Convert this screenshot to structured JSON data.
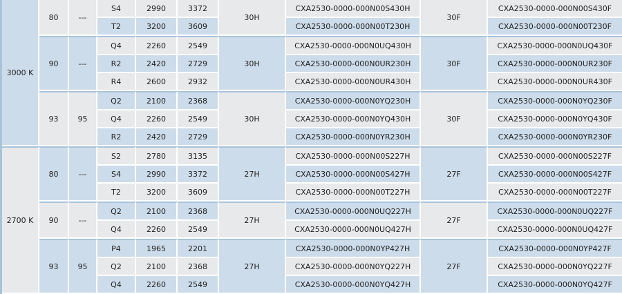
{
  "colors": {
    "grey": "#e8e9ea",
    "blue": "#cddcea",
    "divider": "#a8c3dc"
  },
  "table": {
    "cct_groups": [
      {
        "cct": "3000 K",
        "cri_groups": [
          {
            "cri_min": "80",
            "cri_typ": "---",
            "code_h": "30H",
            "code_f": "30F",
            "bins": [
              {
                "bin": "S4",
                "flux_min": "2990",
                "flux_typ": "3372",
                "part_h": "CXA2530-0000-000N00S430H",
                "part_f": "CXA2530-0000-000N00S430F"
              },
              {
                "bin": "T2",
                "flux_min": "3200",
                "flux_typ": "3609",
                "part_h": "CXA2530-0000-000N00T230H",
                "part_f": "CXA2530-0000-000N00T230F"
              }
            ]
          },
          {
            "cri_min": "90",
            "cri_typ": "---",
            "code_h": "30H",
            "code_f": "30F",
            "bins": [
              {
                "bin": "Q4",
                "flux_min": "2260",
                "flux_typ": "2549",
                "part_h": "CXA2530-0000-000N0UQ430H",
                "part_f": "CXA2530-0000-000N0UQ430F"
              },
              {
                "bin": "R2",
                "flux_min": "2420",
                "flux_typ": "2729",
                "part_h": "CXA2530-0000-000N0UR230H",
                "part_f": "CXA2530-0000-000N0UR230F"
              },
              {
                "bin": "R4",
                "flux_min": "2600",
                "flux_typ": "2932",
                "part_h": "CXA2530-0000-000N0UR430H",
                "part_f": "CXA2530-0000-000N0UR430F"
              }
            ]
          },
          {
            "cri_min": "93",
            "cri_typ": "95",
            "code_h": "30H",
            "code_f": "30F",
            "bins": [
              {
                "bin": "Q2",
                "flux_min": "2100",
                "flux_typ": "2368",
                "part_h": "CXA2530-0000-000N0YQ230H",
                "part_f": "CXA2530-0000-000N0YQ230F"
              },
              {
                "bin": "Q4",
                "flux_min": "2260",
                "flux_typ": "2549",
                "part_h": "CXA2530-0000-000N0YQ430H",
                "part_f": "CXA2530-0000-000N0YQ430F"
              },
              {
                "bin": "R2",
                "flux_min": "2420",
                "flux_typ": "2729",
                "part_h": "CXA2530-0000-000N0YR230H",
                "part_f": "CXA2530-0000-000N0YR230F"
              }
            ]
          }
        ]
      },
      {
        "cct": "2700 K",
        "cri_groups": [
          {
            "cri_min": "80",
            "cri_typ": "---",
            "code_h": "27H",
            "code_f": "27F",
            "bins": [
              {
                "bin": "S2",
                "flux_min": "2780",
                "flux_typ": "3135",
                "part_h": "CXA2530-0000-000N00S227H",
                "part_f": "CXA2530-0000-000N00S227F"
              },
              {
                "bin": "S4",
                "flux_min": "2990",
                "flux_typ": "3372",
                "part_h": "CXA2530-0000-000N00S427H",
                "part_f": "CXA2530-0000-000N00S427F"
              },
              {
                "bin": "T2",
                "flux_min": "3200",
                "flux_typ": "3609",
                "part_h": "CXA2530-0000-000N00T227H",
                "part_f": "CXA2530-0000-000N00T227F"
              }
            ]
          },
          {
            "cri_min": "90",
            "cri_typ": "---",
            "code_h": "27H",
            "code_f": "27F",
            "bins": [
              {
                "bin": "Q2",
                "flux_min": "2100",
                "flux_typ": "2368",
                "part_h": "CXA2530-0000-000N0UQ227H",
                "part_f": "CXA2530-0000-000N0UQ227F"
              },
              {
                "bin": "Q4",
                "flux_min": "2260",
                "flux_typ": "2549",
                "part_h": "CXA2530-0000-000N0UQ427H",
                "part_f": "CXA2530-0000-000N0UQ427F"
              }
            ]
          },
          {
            "cri_min": "93",
            "cri_typ": "95",
            "code_h": "27H",
            "code_f": "27F",
            "bins": [
              {
                "bin": "P4",
                "flux_min": "1965",
                "flux_typ": "2201",
                "part_h": "CXA2530-0000-000N0YP427H",
                "part_f": "CXA2530-0000-000N0YP427F"
              },
              {
                "bin": "Q2",
                "flux_min": "2100",
                "flux_typ": "2368",
                "part_h": "CXA2530-0000-000N0YQ227H",
                "part_f": "CXA2530-0000-000N0YQ227F"
              },
              {
                "bin": "Q4",
                "flux_min": "2260",
                "flux_typ": "2549",
                "part_h": "CXA2530-0000-000N0YQ427H",
                "part_f": "CXA2530-0000-000N0YQ427F"
              }
            ]
          }
        ]
      }
    ]
  }
}
